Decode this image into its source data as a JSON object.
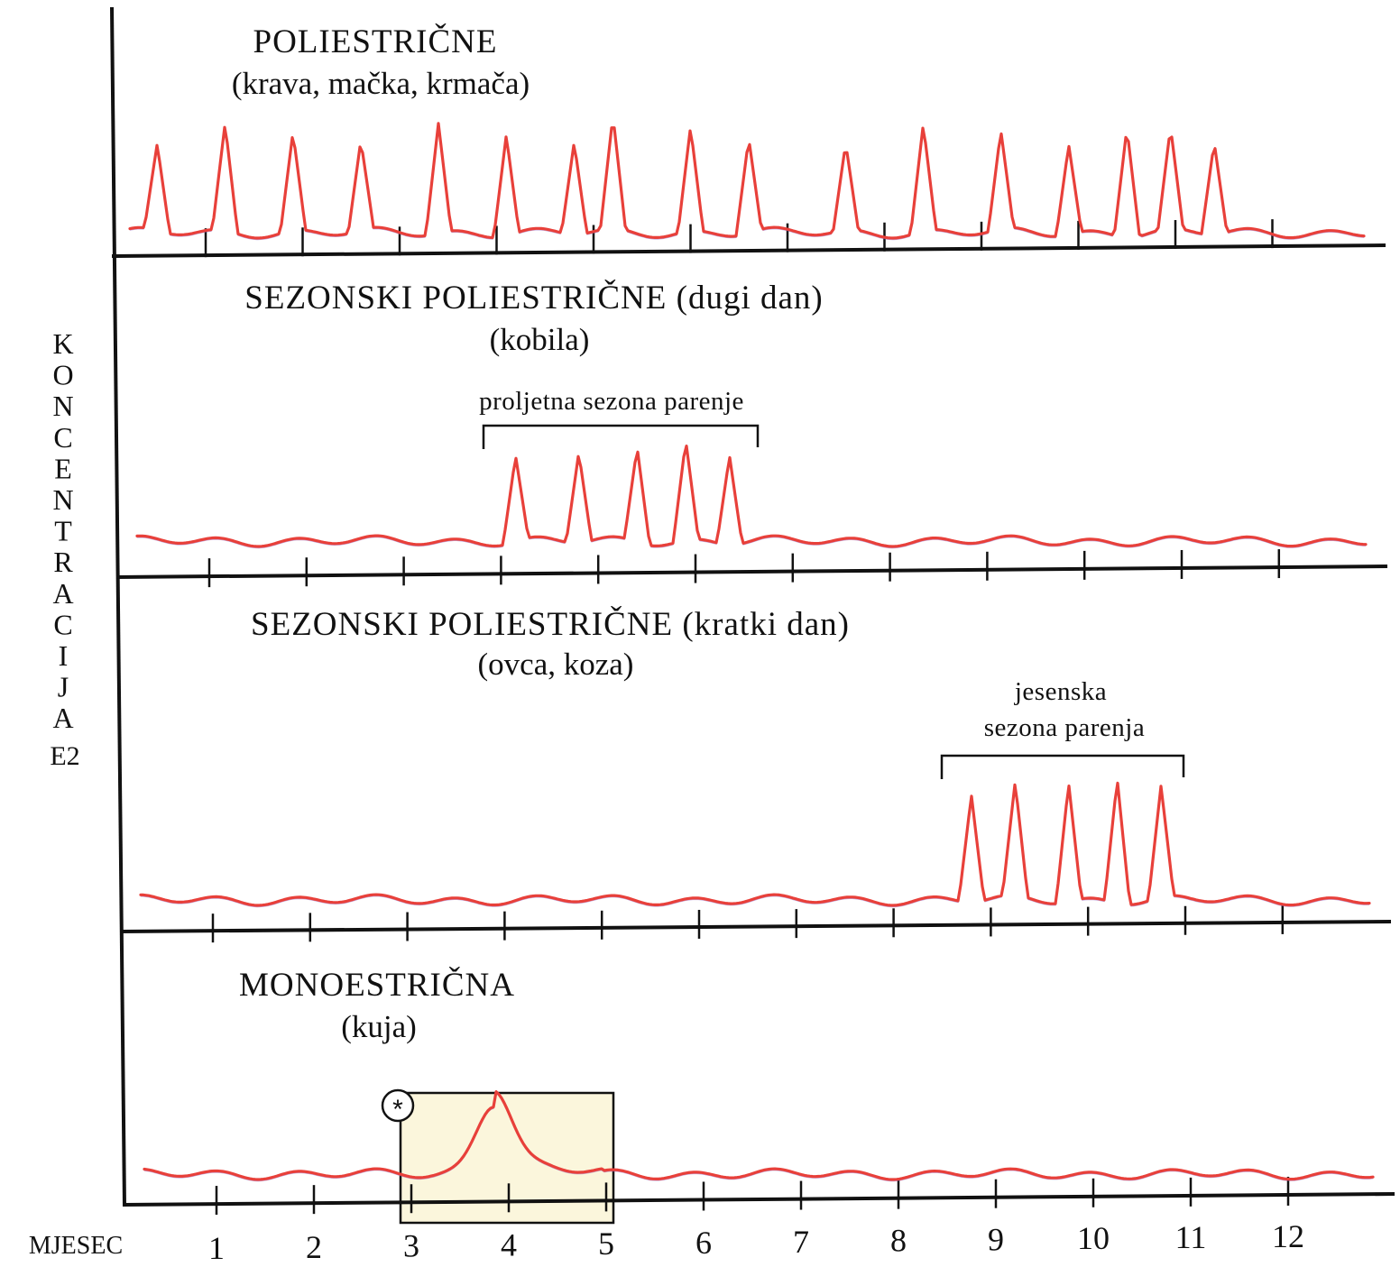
{
  "y_axis": {
    "letters": [
      "K",
      "O",
      "N",
      "C",
      "E",
      "N",
      "T",
      "R",
      "A",
      "C",
      "I",
      "J",
      "A"
    ],
    "suffix": "E2"
  },
  "x_axis": {
    "label": "MJESEC",
    "months": [
      "1",
      "2",
      "3",
      "4",
      "5",
      "6",
      "7",
      "8",
      "9",
      "10",
      "11",
      "12"
    ]
  },
  "panels": [
    {
      "title": "POLIESTRIČNE",
      "subtitle": "(krava, mačka, krmača)",
      "peaks": [
        0.5,
        1.2,
        1.9,
        2.6,
        3.4,
        4.1,
        4.8,
        5.2,
        6.0,
        6.6,
        7.6,
        8.4,
        9.2,
        9.9,
        10.5,
        10.95,
        11.4
      ],
      "season": ""
    },
    {
      "title": "SEZONSKI POLIESTRIČNE (dugi dan)",
      "subtitle": "(kobila)",
      "season": "proljetna sezona parenje",
      "season_range": [
        3.8,
        6.6
      ],
      "peaks": [
        4.15,
        4.8,
        5.4,
        5.9,
        6.35
      ]
    },
    {
      "title": "SEZONSKI POLIESTRIČNE (kratki dan)",
      "subtitle": "(ovca, koza)",
      "season": "jesenska sezona parenja",
      "season_lines": [
        "jesenska",
        "sezona parenja"
      ],
      "season_range": [
        8.5,
        11.0
      ],
      "peaks": [
        8.8,
        9.25,
        9.8,
        10.3,
        10.75
      ]
    },
    {
      "title": "MONOESTRIČNA",
      "subtitle": "(kuja)",
      "season": "",
      "marker": "*",
      "highlight_range": [
        2.95,
        5.1
      ],
      "highlight_color": "#fbf6dc",
      "peaks": [
        3.85
      ]
    }
  ],
  "colors": {
    "trace": "#e8403a",
    "axis": "#111111"
  }
}
